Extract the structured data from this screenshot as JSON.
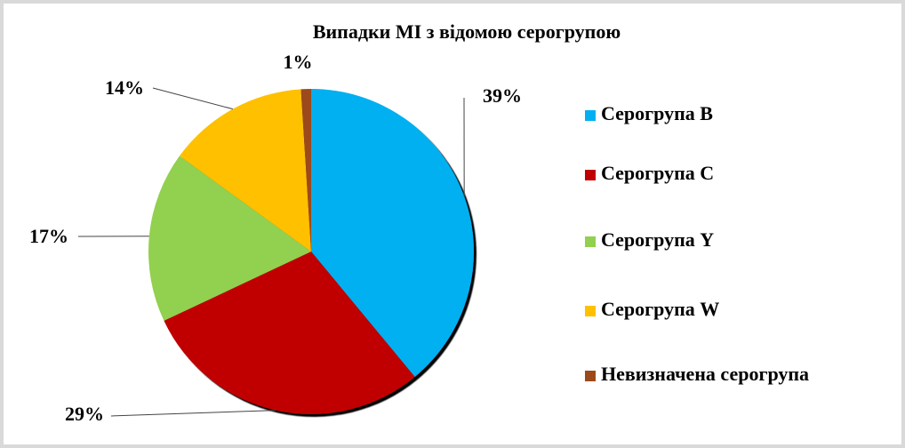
{
  "chart_data": {
    "type": "pie",
    "title": "Випадки МІ з відомою серогрупою",
    "categories": [
      "Серогрупа B",
      "Серогрупа C",
      "Серогрупа Y",
      "Серогрупа W",
      "Невизначена серогрупа"
    ],
    "values": [
      39,
      29,
      17,
      14,
      1
    ],
    "value_labels": [
      "39%",
      "29%",
      "17%",
      "14%",
      "1%"
    ],
    "colors": [
      "#00b0f0",
      "#c00000",
      "#92d050",
      "#ffc000",
      "#9c4a1a"
    ],
    "legend": "right"
  }
}
